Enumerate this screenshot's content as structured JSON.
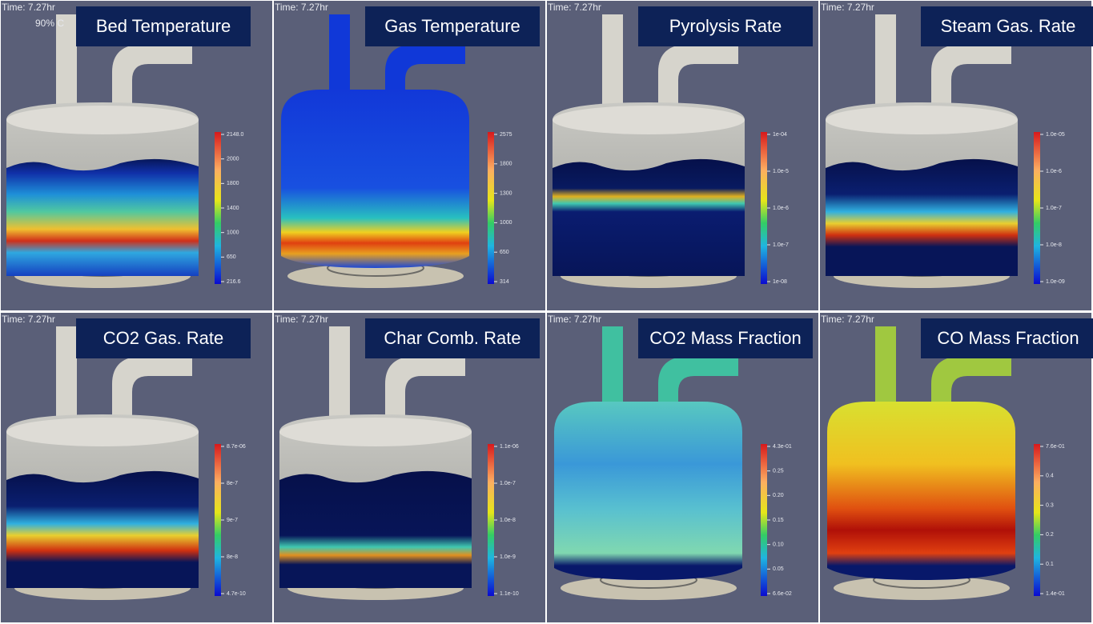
{
  "panels": [
    {
      "title": "Bed Temperature",
      "time": "Time: 7.27hr",
      "note": "90% C",
      "colorbar": [
        "2148.0",
        "2000",
        "1800",
        "1400",
        "1000",
        "650",
        "216.6"
      ]
    },
    {
      "title": "Gas Temperature",
      "time": "Time: 7.27hr",
      "colorbar": [
        "2575",
        "1800",
        "1300",
        "1000",
        "650",
        "314"
      ]
    },
    {
      "title": "Pyrolysis Rate",
      "time": "Time: 7.27hr",
      "colorbar": [
        "1e-04",
        "1.0e-5",
        "1.0e-6",
        "1.0e-7",
        "1e-08"
      ]
    },
    {
      "title": "Steam Gas. Rate",
      "time": "Time: 7.27hr",
      "colorbar": [
        "1.0e-05",
        "1.0e-6",
        "1.0e-7",
        "1.0e-8",
        "1.0e-09"
      ]
    },
    {
      "title": "CO2 Gas. Rate",
      "time": "Time: 7.27hr",
      "colorbar": [
        "8.7e-06",
        "8e-7",
        "9e-7",
        "8e-8",
        "4.7e-10"
      ]
    },
    {
      "title": "Char Comb. Rate",
      "time": "Time: 7.27hr",
      "colorbar": [
        "1.1e-06",
        "1.0e-7",
        "1.0e-8",
        "1.0e-9",
        "1.1e-10"
      ]
    },
    {
      "title": "CO2 Mass Fraction",
      "time": "Time: 7.27hr",
      "colorbar": [
        "4.3e-01",
        "0.25",
        "0.20",
        "0.15",
        "0.10",
        "0.05",
        "6.6e-02"
      ]
    },
    {
      "title": "CO Mass Fraction",
      "time": "Time: 7.27hr",
      "colorbar": [
        "7.6e-01",
        "0.4",
        "0.3",
        "0.2",
        "0.1",
        "1.4e-01"
      ]
    }
  ]
}
